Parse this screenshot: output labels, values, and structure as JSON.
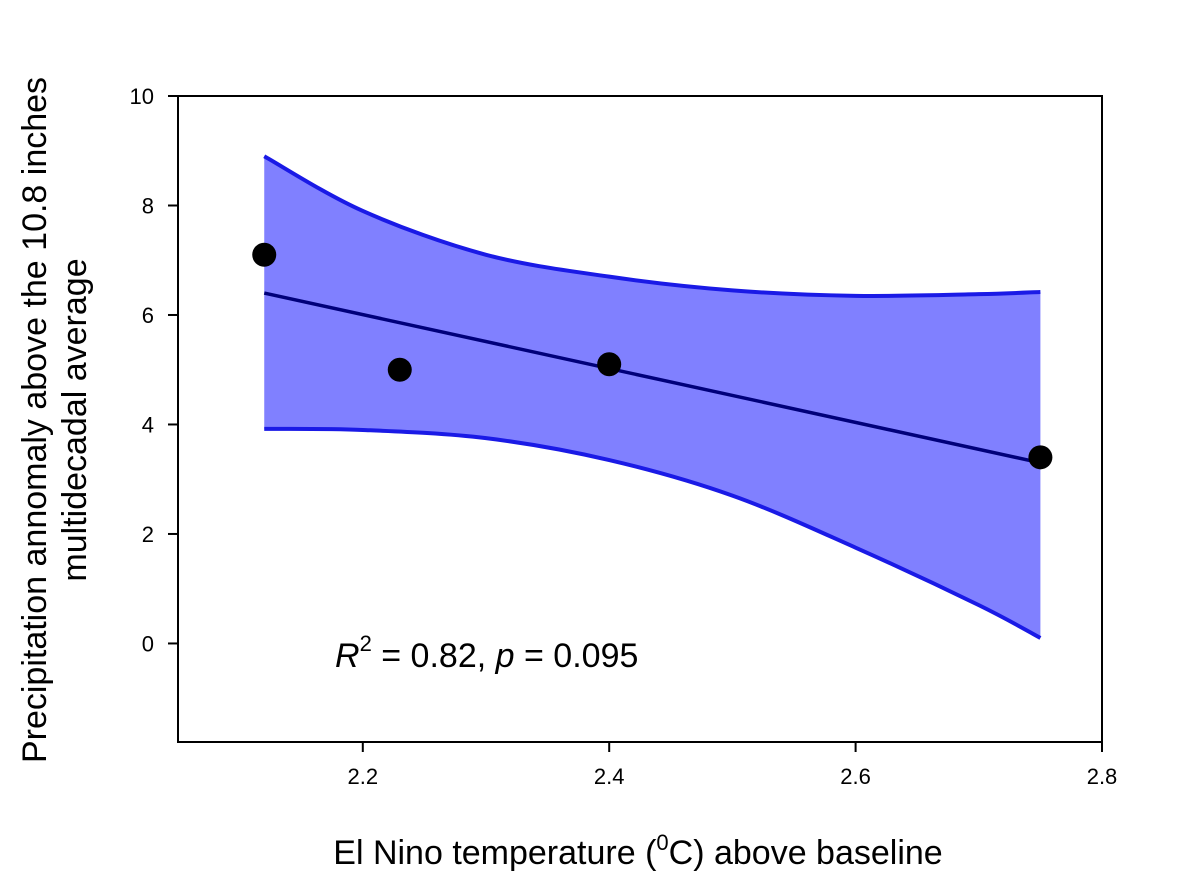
{
  "chart_data": {
    "type": "scatter",
    "xlabel": {
      "prefix": "El Nino temperature (",
      "superscript": "0",
      "suffix": "C) above baseline"
    },
    "ylabel": {
      "line1": "Precipitation annomaly above the 10.8 inches",
      "line2": "multidecadal average"
    },
    "xlim": [
      2.05,
      2.8
    ],
    "ylim": [
      -1.8,
      10
    ],
    "xticks": [
      2.2,
      2.4,
      2.6,
      2.8
    ],
    "xtick_labels": [
      "2.2",
      "2.4",
      "2.6",
      "2.8"
    ],
    "yticks": [
      0,
      2,
      4,
      6,
      8,
      10
    ],
    "ytick_labels": [
      "0",
      "2",
      "4",
      "6",
      "8",
      "10"
    ],
    "grid": false,
    "points": [
      {
        "x": 2.12,
        "y": 7.1
      },
      {
        "x": 2.23,
        "y": 5.0
      },
      {
        "x": 2.4,
        "y": 5.1
      },
      {
        "x": 2.75,
        "y": 3.4
      }
    ],
    "regression_line": {
      "x": [
        2.12,
        2.75
      ],
      "y": [
        6.4,
        3.3
      ]
    },
    "confidence_band": {
      "x": [
        2.12,
        2.2,
        2.3,
        2.4,
        2.5,
        2.6,
        2.7,
        2.75
      ],
      "upper": [
        8.9,
        7.9,
        7.1,
        6.7,
        6.45,
        6.35,
        6.38,
        6.42
      ],
      "lower": [
        3.92,
        3.9,
        3.75,
        3.35,
        2.7,
        1.75,
        0.7,
        0.1
      ]
    },
    "colors": {
      "band_fill": "#8080ff",
      "band_edge": "#1a1ae6",
      "regression": "#00007a",
      "points": "#000000"
    },
    "annotation": {
      "r_symbol": "R",
      "r_exponent": "2",
      "middle": " = 0.82, ",
      "p_symbol": "p",
      "tail": " = 0.095"
    }
  }
}
